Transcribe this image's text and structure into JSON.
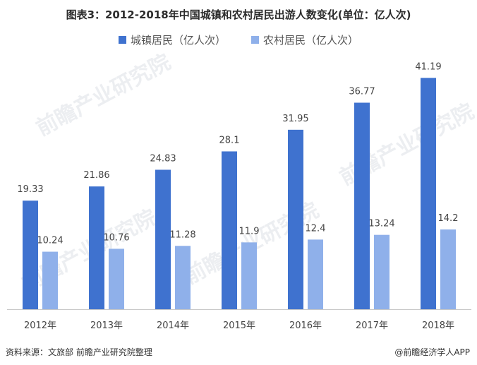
{
  "title": "图表3：2012-2018年中国城镇和农村居民出游人数变化(单位：亿人次)",
  "legend": {
    "urban": "城镇居民（亿人次）",
    "rural": "农村居民（亿人次）"
  },
  "colors": {
    "urban": "#3f72cf",
    "rural": "#8fb0ea",
    "axis": "#c8c8c8"
  },
  "source": "资料来源：文旅部 前瞻产业研究院整理",
  "brand": "@前瞻经济学人APP",
  "watermark": "前瞻产业研究院",
  "chart_data": {
    "type": "bar",
    "title": "图表3：2012-2018年中国城镇和农村居民出游人数变化(单位：亿人次)",
    "categories": [
      "2012年",
      "2013年",
      "2014年",
      "2015年",
      "2016年",
      "2017年",
      "2018年"
    ],
    "series": [
      {
        "name": "城镇居民（亿人次）",
        "values": [
          19.33,
          21.86,
          24.83,
          28.1,
          31.95,
          36.77,
          41.19
        ],
        "labels": [
          "19.33",
          "21.86",
          "24.83",
          "28.1",
          "31.95",
          "36.77",
          "41.19"
        ]
      },
      {
        "name": "农村居民（亿人次）",
        "values": [
          10.24,
          10.76,
          11.28,
          11.9,
          12.4,
          13.24,
          14.2
        ],
        "labels": [
          "10.24",
          "10.76",
          "11.28",
          "11.9",
          "12.4",
          "13.24",
          "14.2"
        ]
      }
    ],
    "ylim": [
      0,
      45
    ],
    "grid": false,
    "legend_position": "top"
  }
}
